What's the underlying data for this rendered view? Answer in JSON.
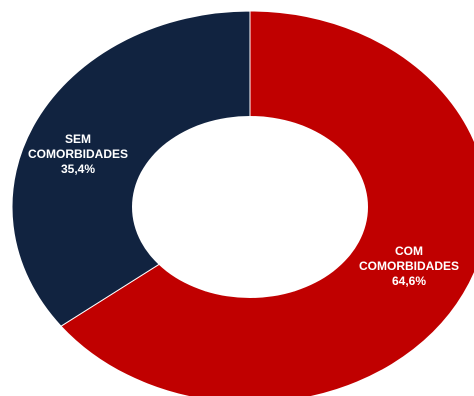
{
  "chart_data": {
    "type": "pie",
    "variant": "donut",
    "title": "",
    "slices": [
      {
        "label_lines": [
          "COM",
          "COMORBIDADES"
        ],
        "value_label": "64,6%",
        "value": 64.6,
        "color": "#C00000"
      },
      {
        "label_lines": [
          "SEM",
          "COMORBIDADES"
        ],
        "value_label": "35,4%",
        "value": 35.4,
        "color": "#112340"
      }
    ],
    "start_angle_deg": 0,
    "direction": "clockwise",
    "legend": "none"
  }
}
